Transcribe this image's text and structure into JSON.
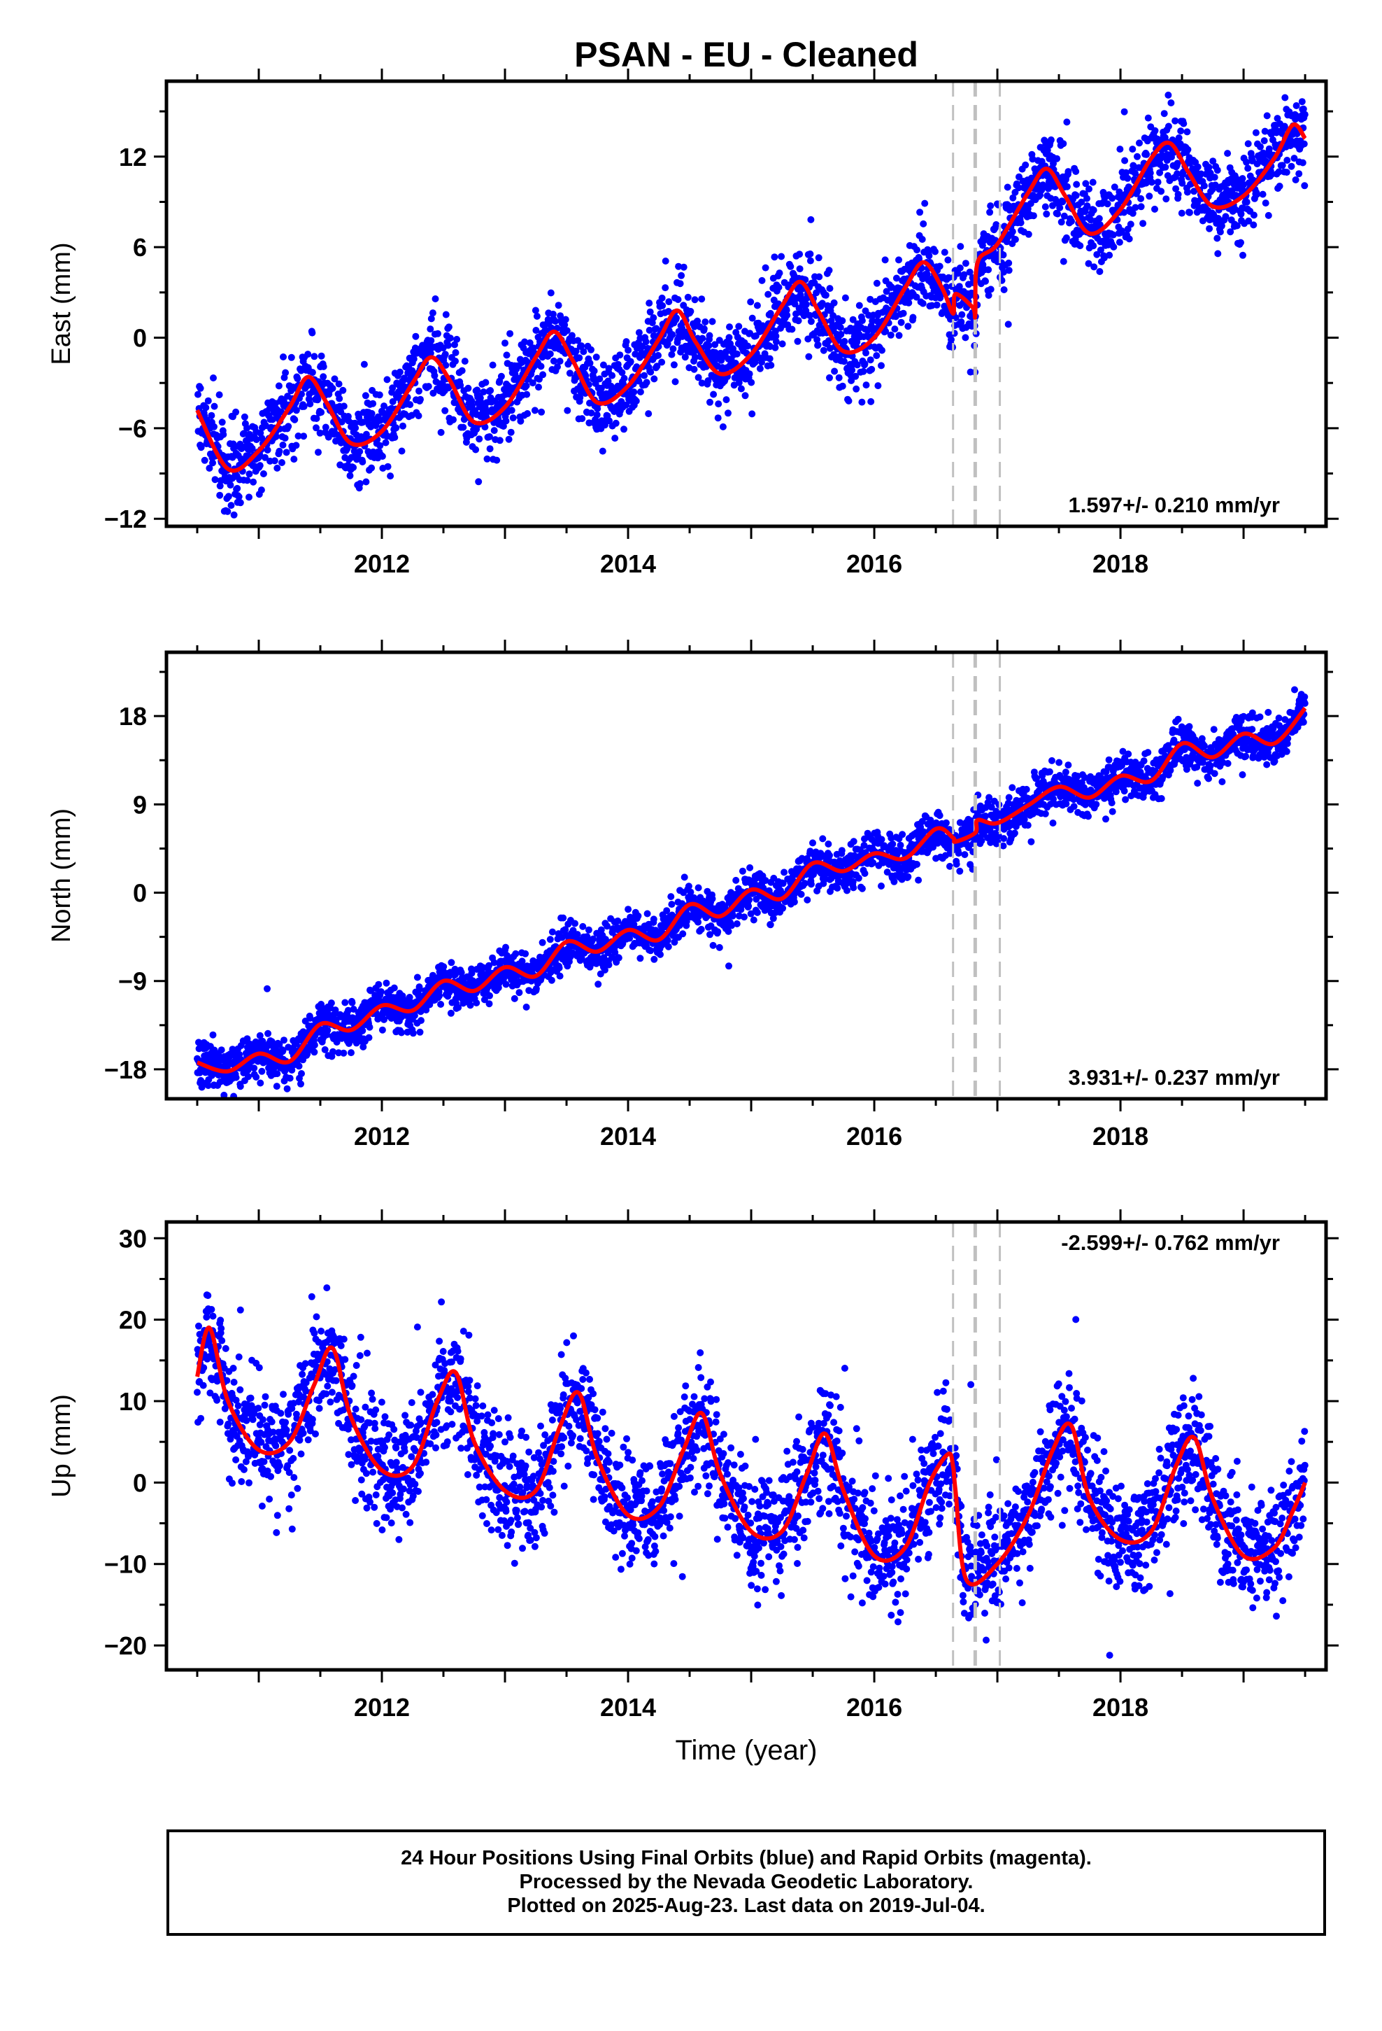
{
  "title": "PSAN  - EU - Cleaned",
  "chart_data": [
    {
      "type": "scatter",
      "panel": "east",
      "ylabel": "East (mm)",
      "xlabel": "",
      "xlim": [
        2010.25,
        2019.67
      ],
      "ylim": [
        -12.5,
        17
      ],
      "yticks": [
        -12,
        -6,
        0,
        6,
        12
      ],
      "xticks": [
        2012,
        2014,
        2016,
        2018
      ],
      "rate_label": "1.597+/- 0.210 mm/yr",
      "fit": {
        "x": [
          2010.5,
          2010.75,
          2011.0,
          2011.25,
          2011.4,
          2011.55,
          2011.75,
          2012.0,
          2012.25,
          2012.4,
          2012.55,
          2012.75,
          2013.0,
          2013.25,
          2013.4,
          2013.55,
          2013.75,
          2014.0,
          2014.25,
          2014.4,
          2014.55,
          2014.75,
          2015.0,
          2015.25,
          2015.4,
          2015.55,
          2015.75,
          2016.0,
          2016.25,
          2016.4,
          2016.55,
          2016.64,
          2016.66,
          2016.8,
          2016.82,
          2016.84,
          2017.0,
          2017.25,
          2017.4,
          2017.55,
          2017.75,
          2018.0,
          2018.25,
          2018.4,
          2018.55,
          2018.75,
          2019.0,
          2019.25,
          2019.4,
          2019.5
        ],
        "y": [
          -4.8,
          -8.7,
          -7.5,
          -4.6,
          -2.6,
          -4.3,
          -7.0,
          -6.2,
          -3.0,
          -1.3,
          -2.8,
          -5.6,
          -4.6,
          -1.3,
          0.4,
          -1.5,
          -4.3,
          -3.2,
          -0.1,
          1.8,
          -0.3,
          -2.4,
          -1.1,
          2.1,
          3.7,
          1.7,
          -0.9,
          0.0,
          3.3,
          5.0,
          3.3,
          1.6,
          2.9,
          2.0,
          1.5,
          5.0,
          6.2,
          9.6,
          11.2,
          9.4,
          6.9,
          8.5,
          11.9,
          12.9,
          11.0,
          8.7,
          9.4,
          11.9,
          14.1,
          13.2
        ]
      },
      "data_density": "daily solutions, about 3300 points, scatter of about +/-2 mm around the fit"
    },
    {
      "type": "scatter",
      "panel": "north",
      "ylabel": "North (mm)",
      "xlabel": "",
      "xlim": [
        2010.25,
        2019.67
      ],
      "ylim": [
        -21,
        24.5
      ],
      "yticks": [
        -18,
        -9,
        0,
        9,
        18
      ],
      "xticks": [
        2012,
        2014,
        2016,
        2018
      ],
      "rate_label": "3.931+/- 0.237 mm/yr",
      "fit": {
        "x": [
          2010.5,
          2010.75,
          2011.0,
          2011.25,
          2011.5,
          2011.75,
          2012.0,
          2012.25,
          2012.5,
          2012.75,
          2013.0,
          2013.25,
          2013.5,
          2013.75,
          2014.0,
          2014.25,
          2014.5,
          2014.75,
          2015.0,
          2015.25,
          2015.5,
          2015.75,
          2016.0,
          2016.25,
          2016.5,
          2016.64,
          2016.66,
          2016.82,
          2016.84,
          2017.0,
          2017.25,
          2017.5,
          2017.75,
          2018.0,
          2018.25,
          2018.5,
          2018.75,
          2019.0,
          2019.25,
          2019.5
        ],
        "y": [
          -17.3,
          -18.2,
          -16.4,
          -17.2,
          -13.4,
          -14.0,
          -11.5,
          -12.0,
          -9.0,
          -10.0,
          -7.6,
          -8.5,
          -5.0,
          -6.0,
          -3.8,
          -4.8,
          -1.2,
          -2.4,
          0.3,
          -0.6,
          3.0,
          2.2,
          4.0,
          3.5,
          6.5,
          5.6,
          5.2,
          6.1,
          7.4,
          7.1,
          8.9,
          10.8,
          9.7,
          11.9,
          11.4,
          15.2,
          13.8,
          16.2,
          15.2,
          18.8
        ]
      },
      "data_density": "daily solutions, about 3300 points, scatter of about +/-1.5 mm around the fit"
    },
    {
      "type": "scatter",
      "panel": "up",
      "ylabel": "Up (mm)",
      "xlabel": "Time (year)",
      "xlim": [
        2010.25,
        2019.67
      ],
      "ylim": [
        -23,
        32
      ],
      "yticks": [
        -20,
        -10,
        0,
        10,
        20,
        30
      ],
      "xticks": [
        2012,
        2014,
        2016,
        2018
      ],
      "rate_label": "-2.599+/- 0.762 mm/yr",
      "fit": {
        "x": [
          2010.5,
          2010.6,
          2010.75,
          2011.0,
          2011.25,
          2011.45,
          2011.6,
          2011.75,
          2012.0,
          2012.25,
          2012.45,
          2012.6,
          2012.75,
          2013.0,
          2013.25,
          2013.45,
          2013.6,
          2013.75,
          2014.0,
          2014.25,
          2014.45,
          2014.6,
          2014.75,
          2015.0,
          2015.25,
          2015.45,
          2015.6,
          2015.75,
          2016.0,
          2016.25,
          2016.45,
          2016.6,
          2016.64,
          2016.66,
          2016.75,
          2017.0,
          2017.25,
          2017.45,
          2017.6,
          2017.75,
          2018.0,
          2018.25,
          2018.45,
          2018.6,
          2018.75,
          2019.0,
          2019.25,
          2019.4,
          2019.5
        ],
        "y": [
          13,
          19,
          10,
          4,
          5,
          12,
          16.5,
          8,
          1.5,
          2,
          10,
          13.5,
          5,
          -1,
          -1,
          7,
          11,
          3,
          -4,
          -3,
          4,
          8.5,
          1,
          -6,
          -6,
          1,
          6,
          -1,
          -9,
          -8,
          0,
          3.5,
          2,
          -1,
          -12,
          -10,
          -4,
          4,
          7,
          -2,
          -7,
          -6,
          2,
          5.5,
          -2,
          -9,
          -8,
          -3.5,
          0
        ]
      },
      "data_density": "daily solutions, about 3300 points, scatter of about +/-4 mm around the fit"
    }
  ],
  "offsets_dashed_years": [
    2016.64,
    2016.82,
    2017.02
  ],
  "colors": {
    "data": "#0000ff",
    "fit": "#ff0000",
    "offset_line": "#c0c0c0"
  },
  "footer": {
    "line1": "24 Hour Positions Using Final Orbits (blue) and Rapid Orbits (magenta).",
    "line2": "Processed by the Nevada Geodetic Laboratory.",
    "line3": "Plotted on 2025-Aug-23. Last data on 2019-Jul-04."
  }
}
